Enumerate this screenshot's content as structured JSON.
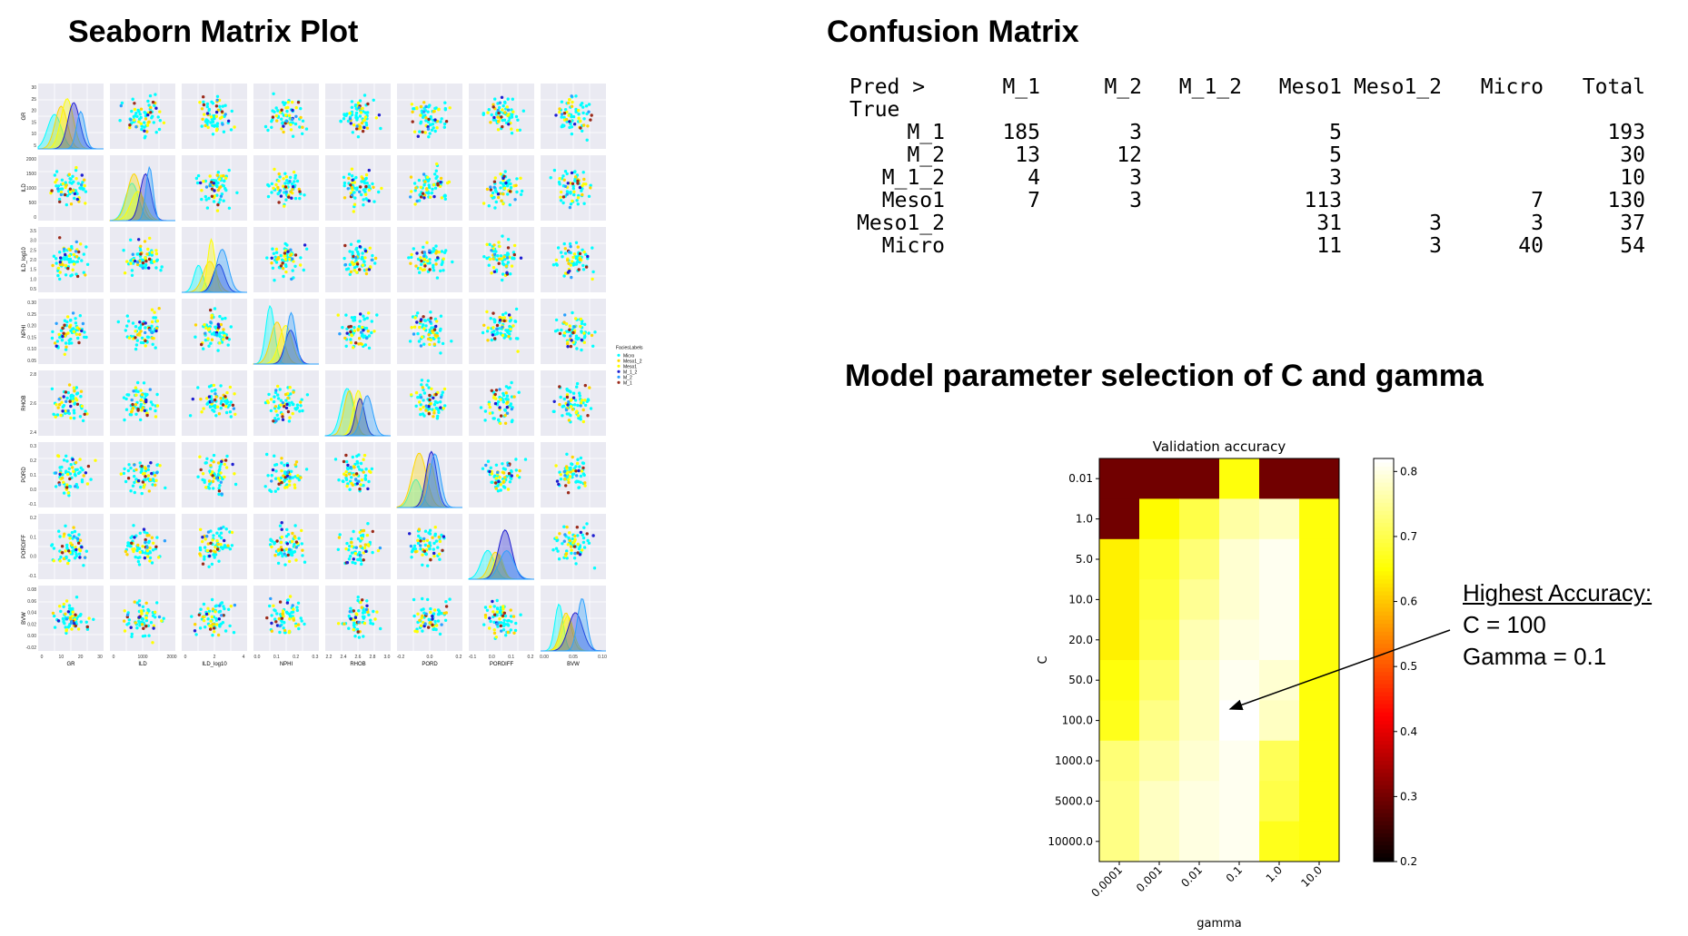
{
  "titles": {
    "pairplot": "Seaborn Matrix Plot",
    "confusion": "Confusion Matrix",
    "heatmap_section": "Model parameter selection of C and gamma"
  },
  "confusion_matrix": {
    "corner_top": "Pred >",
    "corner_bottom": "True",
    "columns": [
      "M_1",
      "M_2",
      "M_1_2",
      "Meso1",
      "Meso1_2",
      "Micro",
      "Total"
    ],
    "rows": [
      {
        "label": "M_1",
        "cells": [
          "185",
          "3",
          "",
          "5",
          "",
          "",
          "193"
        ]
      },
      {
        "label": "M_2",
        "cells": [
          "13",
          "12",
          "",
          "5",
          "",
          "",
          "30"
        ]
      },
      {
        "label": "M_1_2",
        "cells": [
          "4",
          "3",
          "",
          "3",
          "",
          "",
          "10"
        ]
      },
      {
        "label": "Meso1",
        "cells": [
          "7",
          "3",
          "",
          "113",
          "",
          "7",
          "130"
        ]
      },
      {
        "label": "Meso1_2",
        "cells": [
          "",
          "",
          "",
          "31",
          "3",
          "3",
          "37"
        ]
      },
      {
        "label": "Micro",
        "cells": [
          "",
          "",
          "",
          "11",
          "3",
          "40",
          "54"
        ]
      }
    ]
  },
  "annotation": {
    "heading": "Highest Accuracy:",
    "line1": "C = 100",
    "line2": "Gamma = 0.1"
  },
  "colors": {
    "micro": "#00ffff",
    "meso1_2": "#ffd700",
    "meso1": "#ffff00",
    "m_1_2": "#1f1fd0",
    "m_2": "#2aa0ff",
    "m_1": "#9b2b1b",
    "panel_bg": "#eaeaf2"
  },
  "chart_data": [
    {
      "type": "scatter",
      "title": "",
      "variables": [
        "GR",
        "ILD",
        "ILD_log10",
        "NPHI",
        "RHOB",
        "PORD",
        "PORDIFF",
        "BVW"
      ],
      "variable_ticks": {
        "GR": [
          "0",
          "10",
          "20",
          "30"
        ],
        "ILD": [
          "0",
          "1000",
          "2000"
        ],
        "ILD_log10": [
          "0",
          "2",
          "4"
        ],
        "NPHI": [
          "0.0",
          "0.1",
          "0.2",
          "0.3"
        ],
        "RHOB": [
          "2.2",
          "2.4",
          "2.6",
          "2.8",
          "3.0"
        ],
        "PORD": [
          "-0.2",
          "0.0",
          "0.2"
        ],
        "PORDIFF": [
          "-0.1",
          "0.0",
          "0.1",
          "0.2"
        ],
        "BVW": [
          "0.00",
          "0.05",
          "0.10"
        ]
      },
      "y_ticks": {
        "GR": [
          "5",
          "10",
          "15",
          "20",
          "25",
          "30"
        ],
        "ILD": [
          "0",
          "500",
          "1000",
          "1500",
          "2000"
        ],
        "ILD_log10": [
          "0.5",
          "1.0",
          "1.5",
          "2.0",
          "2.5",
          "3.0",
          "3.5"
        ],
        "NPHI": [
          "0.05",
          "0.10",
          "0.15",
          "0.20",
          "0.25",
          "0.30"
        ],
        "RHOB": [
          "2.4",
          "2.6",
          "2.8"
        ],
        "PORD": [
          "-0.1",
          "0.0",
          "0.1",
          "0.2",
          "0.3"
        ],
        "PORDIFF": [
          "-0.1",
          "0.0",
          "0.1",
          "0.2"
        ],
        "BVW": [
          "-0.02",
          "0.00",
          "0.02",
          "0.04",
          "0.06",
          "0.08"
        ]
      },
      "legend": {
        "title": "FaciesLabels",
        "placement": "right",
        "entries": [
          "Micro",
          "Meso1_2",
          "Meso1",
          "M_1_2",
          "M_2",
          "M_1"
        ]
      },
      "diagonal": "kde",
      "grid": true
    },
    {
      "type": "heatmap",
      "title": "Validation accuracy",
      "xlabel": "gamma",
      "ylabel": "C",
      "x": [
        "0.0001",
        "0.001",
        "0.01",
        "0.1",
        "1.0",
        "10.0"
      ],
      "y": [
        "0.01",
        "1.0",
        "5.0",
        "10.0",
        "20.0",
        "50.0",
        "100.0",
        "1000.0",
        "5000.0",
        "10000.0"
      ],
      "values": [
        [
          0.3,
          0.3,
          0.3,
          0.66,
          0.3,
          0.3
        ],
        [
          0.3,
          0.65,
          0.7,
          0.76,
          0.78,
          0.66
        ],
        [
          0.64,
          0.68,
          0.73,
          0.79,
          0.81,
          0.66
        ],
        [
          0.64,
          0.69,
          0.75,
          0.79,
          0.81,
          0.66
        ],
        [
          0.64,
          0.7,
          0.77,
          0.8,
          0.81,
          0.66
        ],
        [
          0.66,
          0.72,
          0.78,
          0.81,
          0.79,
          0.66
        ],
        [
          0.67,
          0.74,
          0.78,
          0.83,
          0.78,
          0.66
        ],
        [
          0.73,
          0.76,
          0.79,
          0.81,
          0.71,
          0.66
        ],
        [
          0.74,
          0.78,
          0.8,
          0.81,
          0.7,
          0.66
        ],
        [
          0.74,
          0.78,
          0.8,
          0.81,
          0.67,
          0.66
        ]
      ],
      "colorbar": {
        "range": [
          0.2,
          0.82
        ],
        "ticks": [
          "0.2",
          "0.3",
          "0.4",
          "0.5",
          "0.6",
          "0.7",
          "0.8"
        ],
        "colormap": "hot"
      }
    }
  ]
}
